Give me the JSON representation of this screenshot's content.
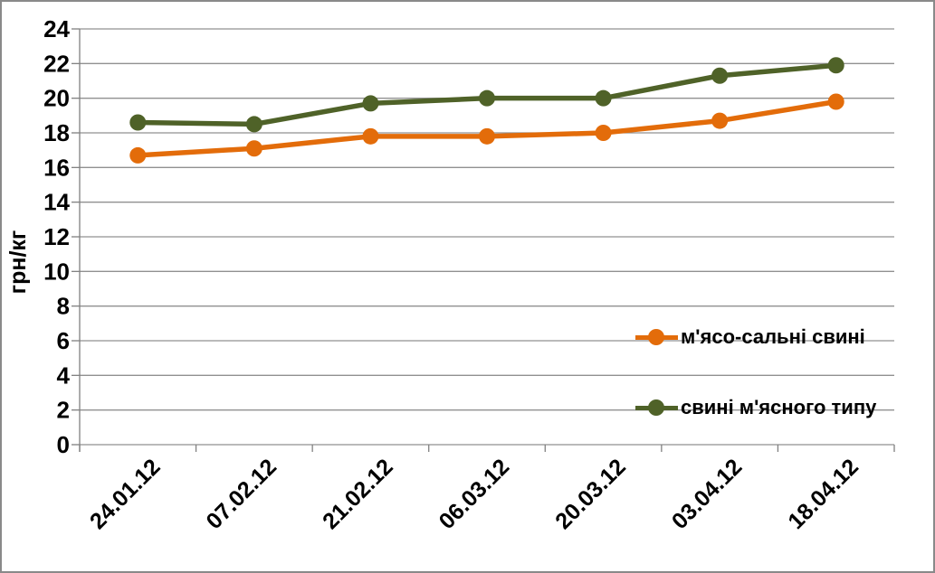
{
  "chart_data": {
    "type": "line",
    "title": "",
    "xlabel": "",
    "ylabel": "грн/кг",
    "categories": [
      "24.01.12",
      "07.02.12",
      "21.02.12",
      "06.03.12",
      "20.03.12",
      "03.04.12",
      "18.04.12"
    ],
    "series": [
      {
        "name": "м'ясо-сальні свині",
        "color": "#E36C0A",
        "values": [
          16.7,
          17.1,
          17.8,
          17.8,
          18.0,
          18.7,
          19.8
        ]
      },
      {
        "name": "свині м'ясного типу",
        "color": "#4F6228",
        "values": [
          18.6,
          18.5,
          19.7,
          20.0,
          20.0,
          21.3,
          21.9
        ]
      }
    ],
    "ylim": [
      0,
      24
    ],
    "ytick_step": 2,
    "grid": true,
    "legend_position": "overlay-right-middle",
    "marker": "circle",
    "colors": {
      "grid": "#909090",
      "axis": "#808080",
      "tick_text": "#000000",
      "frame_border": "#898989",
      "background": "#FFFFFF"
    }
  }
}
